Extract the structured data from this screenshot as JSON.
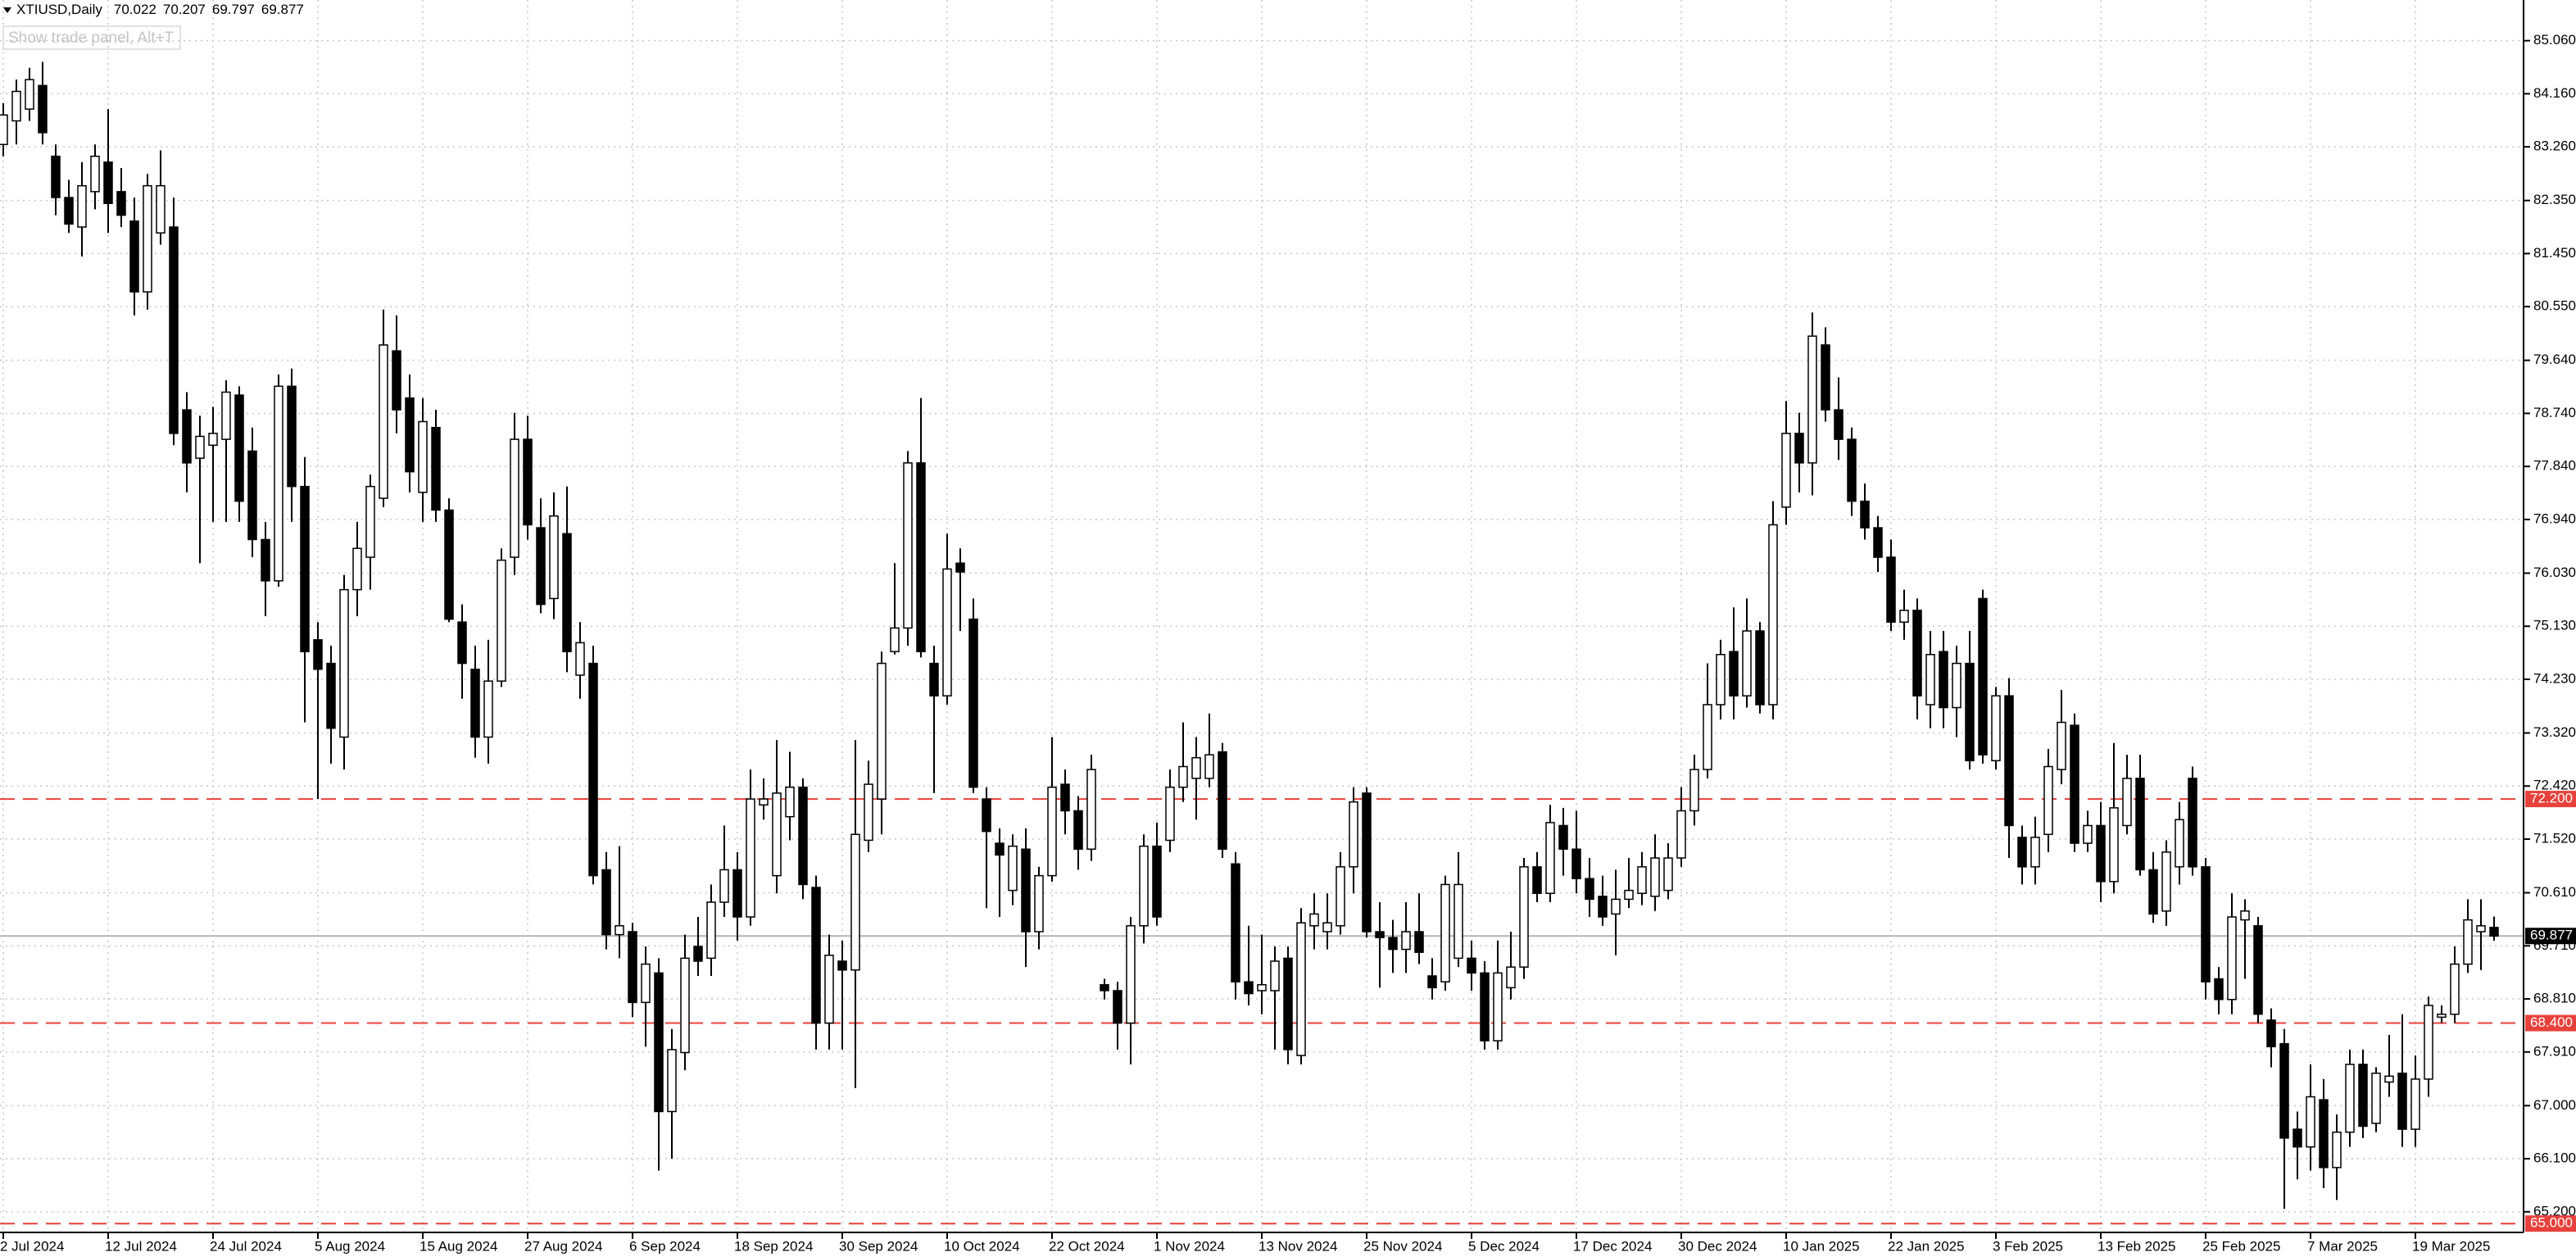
{
  "header": {
    "trade_panel_hint": "Show trade panel, Alt+T"
  },
  "chart_data": {
    "type": "candlestick",
    "symbol": "XTIUSD,Daily",
    "categories": [
      "2 Jul 2024",
      null,
      null,
      null,
      null,
      null,
      null,
      null,
      "12 Jul 2024",
      null,
      null,
      null,
      null,
      null,
      null,
      null,
      "24 Jul 2024",
      null,
      null,
      null,
      null,
      null,
      null,
      null,
      "5 Aug 2024",
      null,
      null,
      null,
      null,
      null,
      null,
      null,
      "15 Aug 2024",
      null,
      null,
      null,
      null,
      null,
      null,
      null,
      "27 Aug 2024",
      null,
      null,
      null,
      null,
      null,
      null,
      null,
      "6 Sep 2024",
      null,
      null,
      null,
      null,
      null,
      null,
      null,
      "18 Sep 2024",
      null,
      null,
      null,
      null,
      null,
      null,
      null,
      "30 Sep 2024",
      null,
      null,
      null,
      null,
      null,
      null,
      null,
      "10 Oct 2024",
      null,
      null,
      null,
      null,
      null,
      null,
      null,
      "22 Oct 2024",
      null,
      null,
      null,
      null,
      null,
      null,
      null,
      "1 Nov 2024",
      null,
      null,
      null,
      null,
      null,
      null,
      null,
      "13 Nov 2024",
      null,
      null,
      null,
      null,
      null,
      null,
      null,
      "25 Nov 2024",
      null,
      null,
      null,
      null,
      null,
      null,
      null,
      "5 Dec 2024",
      null,
      null,
      null,
      null,
      null,
      null,
      null,
      "17 Dec 2024",
      null,
      null,
      null,
      null,
      null,
      null,
      null,
      "30 Dec 2024",
      null,
      null,
      null,
      null,
      null,
      null,
      null,
      "10 Jan 2025",
      null,
      null,
      null,
      null,
      null,
      null,
      null,
      "22 Jan 2025",
      null,
      null,
      null,
      null,
      null,
      null,
      null,
      "3 Feb 2025",
      null,
      null,
      null,
      null,
      null,
      null,
      null,
      "13 Feb 2025",
      null,
      null,
      null,
      null,
      null,
      null,
      null,
      "25 Feb 2025",
      null,
      null,
      null,
      null,
      null,
      null,
      null,
      "7 Mar 2025",
      null,
      null,
      null,
      null,
      null,
      null,
      null,
      "19 Mar 2025",
      null,
      null,
      null,
      null,
      null,
      null
    ],
    "open": [
      83.3,
      83.7,
      83.9,
      84.3,
      83.1,
      82.4,
      81.9,
      82.5,
      83.0,
      82.5,
      82.0,
      80.8,
      81.8,
      81.9,
      78.8,
      77.98,
      78.2,
      78.3,
      79.05,
      78.1,
      76.6,
      75.9,
      79.2,
      77.5,
      74.9,
      74.5,
      73.25,
      75.75,
      76.3,
      77.3,
      79.8,
      79.0,
      77.4,
      78.5,
      77.1,
      75.2,
      74.4,
      73.25,
      74.2,
      76.3,
      78.3,
      76.8,
      75.6,
      76.7,
      74.3,
      74.5,
      71.0,
      69.9,
      69.95,
      68.75,
      69.25,
      66.9,
      67.9,
      69.7,
      69.5,
      70.45,
      71.0,
      70.2,
      72.1,
      70.9,
      71.9,
      72.4,
      70.7,
      68.4,
      69.45,
      69.3,
      71.5,
      72.2,
      74.7,
      75.1,
      77.9,
      74.5,
      73.95,
      76.2,
      75.25,
      72.2,
      71.45,
      70.65,
      71.35,
      69.95,
      70.9,
      72.45,
      72.0,
      71.35,
      69.05,
      68.95,
      68.4,
      70.05,
      71.4,
      71.5,
      72.4,
      72.55,
      72.55,
      73.0,
      71.1,
      69.1,
      68.95,
      68.95,
      69.5,
      67.85,
      70.05,
      69.95,
      70.05,
      71.05,
      72.3,
      69.95,
      69.85,
      69.65,
      69.95,
      69.2,
      69.1,
      69.5,
      69.5,
      69.25,
      68.1,
      69.0,
      69.35,
      71.05,
      70.6,
      71.75,
      71.35,
      70.85,
      70.55,
      70.25,
      70.5,
      70.6,
      70.55,
      70.65,
      71.2,
      72.0,
      72.7,
      73.8,
      74.7,
      73.95,
      75.05,
      73.8,
      77.15,
      78.4,
      77.9,
      79.9,
      78.8,
      78.3,
      77.25,
      76.8,
      76.3,
      75.2,
      75.4,
      73.8,
      74.7,
      73.75,
      74.5,
      75.6,
      72.85,
      73.95,
      71.55,
      71.05,
      71.6,
      72.7,
      73.45,
      71.45,
      71.75,
      70.8,
      71.75,
      72.55,
      71.0,
      70.3,
      71.05,
      72.55,
      71.05,
      69.15,
      68.8,
      70.15,
      70.05,
      68.45,
      68.05,
      66.6,
      66.3,
      67.1,
      65.95,
      66.55,
      67.7,
      66.7,
      67.4,
      67.55,
      66.6,
      67.45,
      68.5,
      68.55,
      69.4,
      69.95,
      70.022
    ],
    "high": [
      84.0,
      84.4,
      84.6,
      84.7,
      83.3,
      82.7,
      83.0,
      83.3,
      83.9,
      82.9,
      82.4,
      82.8,
      83.2,
      82.4,
      79.1,
      78.7,
      78.85,
      79.3,
      79.2,
      78.5,
      76.9,
      79.4,
      79.5,
      78.0,
      75.2,
      74.8,
      76.0,
      76.9,
      77.7,
      80.5,
      80.4,
      79.4,
      79.0,
      78.8,
      77.3,
      75.5,
      74.8,
      74.9,
      76.45,
      78.75,
      78.7,
      77.3,
      77.4,
      77.5,
      75.2,
      74.8,
      71.3,
      71.4,
      70.1,
      69.7,
      69.5,
      68.3,
      69.9,
      70.2,
      70.75,
      71.75,
      71.3,
      72.7,
      72.55,
      73.2,
      73.0,
      72.55,
      70.9,
      69.9,
      69.8,
      73.2,
      72.85,
      74.7,
      76.2,
      78.1,
      79.0,
      74.8,
      76.7,
      76.45,
      75.6,
      72.4,
      71.7,
      71.6,
      71.7,
      71.05,
      73.25,
      72.7,
      72.25,
      72.95,
      69.15,
      69.1,
      70.2,
      71.6,
      71.8,
      72.7,
      73.5,
      73.25,
      73.65,
      73.15,
      71.3,
      70.05,
      69.9,
      69.7,
      69.7,
      70.35,
      70.6,
      70.6,
      71.3,
      72.4,
      72.4,
      70.45,
      70.15,
      70.45,
      70.6,
      69.5,
      70.9,
      71.3,
      69.8,
      69.45,
      69.8,
      69.95,
      71.2,
      71.3,
      72.1,
      72.05,
      72.0,
      71.2,
      70.9,
      71.0,
      71.2,
      71.3,
      71.6,
      71.45,
      72.4,
      72.95,
      74.5,
      74.9,
      75.45,
      75.6,
      75.2,
      77.25,
      78.95,
      78.75,
      80.45,
      80.2,
      79.35,
      78.5,
      77.55,
      77.0,
      76.6,
      75.75,
      75.6,
      75.05,
      75.05,
      74.8,
      75.05,
      75.75,
      74.1,
      74.25,
      71.75,
      71.9,
      73.05,
      74.05,
      73.65,
      72.0,
      72.15,
      73.15,
      72.95,
      72.95,
      71.3,
      71.5,
      72.15,
      72.75,
      71.2,
      69.35,
      70.6,
      70.5,
      70.2,
      68.65,
      68.3,
      66.9,
      67.7,
      67.45,
      66.85,
      67.95,
      67.95,
      67.65,
      68.2,
      68.55,
      67.85,
      68.85,
      68.7,
      69.7,
      70.5,
      70.5,
      70.207
    ],
    "low": [
      83.1,
      83.3,
      83.7,
      83.3,
      82.1,
      81.8,
      81.4,
      82.2,
      81.8,
      81.9,
      80.4,
      80.5,
      81.6,
      78.2,
      77.4,
      76.2,
      76.9,
      76.9,
      76.9,
      76.3,
      75.3,
      75.8,
      76.9,
      73.5,
      72.2,
      72.8,
      72.7,
      75.3,
      75.75,
      77.15,
      78.4,
      77.4,
      76.9,
      76.9,
      75.2,
      73.9,
      72.9,
      72.8,
      74.1,
      76.0,
      76.6,
      75.35,
      75.25,
      74.35,
      73.9,
      70.75,
      69.65,
      69.5,
      68.5,
      68.0,
      65.9,
      66.1,
      67.6,
      69.2,
      69.2,
      70.2,
      69.8,
      70.05,
      71.85,
      70.6,
      71.5,
      70.5,
      67.95,
      67.95,
      67.95,
      67.3,
      71.3,
      71.6,
      74.65,
      74.8,
      74.6,
      72.3,
      73.8,
      75.05,
      72.3,
      70.35,
      70.2,
      70.4,
      69.35,
      69.65,
      70.8,
      71.6,
      71.0,
      71.15,
      68.8,
      67.95,
      67.7,
      69.75,
      70.05,
      71.3,
      72.15,
      71.85,
      72.4,
      71.2,
      68.8,
      68.7,
      68.55,
      67.95,
      67.7,
      67.7,
      69.65,
      69.65,
      69.9,
      70.6,
      69.85,
      69.0,
      69.25,
      69.25,
      69.4,
      68.8,
      68.95,
      69.35,
      68.95,
      67.95,
      67.95,
      68.8,
      69.15,
      70.45,
      70.45,
      70.9,
      70.6,
      70.2,
      70.05,
      69.55,
      70.35,
      70.4,
      70.3,
      70.5,
      71.05,
      71.75,
      72.55,
      73.55,
      73.55,
      73.75,
      73.65,
      73.55,
      76.85,
      77.4,
      77.35,
      78.6,
      77.95,
      77.0,
      76.6,
      76.05,
      75.05,
      74.9,
      73.55,
      73.4,
      73.4,
      73.25,
      72.7,
      72.8,
      72.7,
      71.2,
      70.75,
      70.75,
      71.3,
      72.45,
      71.3,
      71.3,
      70.45,
      70.6,
      71.6,
      70.9,
      70.1,
      70.05,
      70.75,
      70.9,
      68.8,
      68.55,
      68.55,
      69.15,
      68.4,
      67.65,
      65.25,
      65.75,
      65.9,
      65.6,
      65.4,
      66.3,
      66.45,
      66.55,
      67.15,
      66.3,
      66.3,
      67.15,
      68.4,
      68.4,
      69.25,
      69.3,
      69.797
    ],
    "close": [
      83.8,
      84.2,
      84.4,
      83.5,
      82.4,
      81.95,
      82.6,
      83.1,
      82.3,
      82.1,
      80.8,
      82.6,
      82.6,
      78.4,
      77.9,
      78.35,
      78.4,
      79.1,
      77.25,
      76.6,
      75.9,
      79.2,
      77.5,
      74.7,
      74.4,
      73.4,
      75.75,
      76.45,
      77.5,
      79.9,
      78.8,
      77.75,
      78.6,
      77.1,
      75.25,
      74.5,
      73.25,
      74.2,
      76.25,
      78.3,
      76.85,
      75.5,
      77.0,
      74.7,
      74.85,
      70.9,
      69.9,
      70.05,
      68.75,
      69.4,
      66.9,
      67.95,
      69.5,
      69.45,
      70.45,
      71.0,
      70.2,
      72.2,
      72.2,
      72.3,
      72.4,
      70.75,
      68.4,
      69.55,
      69.3,
      71.6,
      72.45,
      74.5,
      75.1,
      77.9,
      74.7,
      73.95,
      76.1,
      76.05,
      72.4,
      71.65,
      71.25,
      71.4,
      69.95,
      70.9,
      72.4,
      72.0,
      71.35,
      72.7,
      68.95,
      68.4,
      70.05,
      71.4,
      70.2,
      72.4,
      72.75,
      72.9,
      72.95,
      71.35,
      69.1,
      68.9,
      69.05,
      69.45,
      67.95,
      70.1,
      70.25,
      70.1,
      71.05,
      72.15,
      69.95,
      69.85,
      69.65,
      69.95,
      69.6,
      69.0,
      70.75,
      70.75,
      69.25,
      68.1,
      69.25,
      69.35,
      71.05,
      70.6,
      71.8,
      71.35,
      70.85,
      70.5,
      70.2,
      70.5,
      70.65,
      71.05,
      71.2,
      71.2,
      72.0,
      72.7,
      73.8,
      74.65,
      73.95,
      75.05,
      73.8,
      76.85,
      78.4,
      77.9,
      80.05,
      78.8,
      78.3,
      77.25,
      76.8,
      76.3,
      75.2,
      75.4,
      73.95,
      74.65,
      73.75,
      74.5,
      72.85,
      72.95,
      73.95,
      71.75,
      71.05,
      71.55,
      72.75,
      73.5,
      71.45,
      71.75,
      70.8,
      72.05,
      72.55,
      71.0,
      70.25,
      71.3,
      71.85,
      71.05,
      69.1,
      68.8,
      70.2,
      70.3,
      68.55,
      68.0,
      66.45,
      66.3,
      67.15,
      65.95,
      66.55,
      67.7,
      66.65,
      67.55,
      67.5,
      66.6,
      67.45,
      68.7,
      68.55,
      69.4,
      70.15,
      70.05,
      69.877
    ],
    "up_color": "#ffffff",
    "down_color": "#000000",
    "wick_color": "#000000",
    "ylim": [
      64.85,
      85.75
    ],
    "yticks": [
      {
        "value": 85.06,
        "label": "85.060"
      },
      {
        "value": 84.16,
        "label": "84.160"
      },
      {
        "value": 83.26,
        "label": "83.260"
      },
      {
        "value": 82.35,
        "label": "82.350"
      },
      {
        "value": 81.45,
        "label": "81.450"
      },
      {
        "value": 80.55,
        "label": "80.550"
      },
      {
        "value": 79.64,
        "label": "79.640"
      },
      {
        "value": 78.74,
        "label": "78.740"
      },
      {
        "value": 77.84,
        "label": "77.840"
      },
      {
        "value": 76.94,
        "label": "76.940"
      },
      {
        "value": 76.03,
        "label": "76.030"
      },
      {
        "value": 75.13,
        "label": "75.130"
      },
      {
        "value": 74.23,
        "label": "74.230"
      },
      {
        "value": 73.32,
        "label": "73.320"
      },
      {
        "value": 72.42,
        "label": "72.420"
      },
      {
        "value": 71.52,
        "label": "71.520"
      },
      {
        "value": 70.61,
        "label": "70.610"
      },
      {
        "value": 69.71,
        "label": "69.710"
      },
      {
        "value": 68.81,
        "label": "68.810"
      },
      {
        "value": 67.91,
        "label": "67.910"
      },
      {
        "value": 67,
        "label": "67.000"
      },
      {
        "value": 66.1,
        "label": "66.100"
      },
      {
        "value": 65.2,
        "label": "65.200"
      }
    ],
    "grid": true,
    "hlines": [
      {
        "value": 72.2,
        "label": "72.200"
      },
      {
        "value": 68.4,
        "label": "68.400"
      },
      {
        "value": 65,
        "label": "65.000"
      }
    ],
    "hline_color": "#e8413c",
    "last_price_color": "#b4b4b4"
  }
}
